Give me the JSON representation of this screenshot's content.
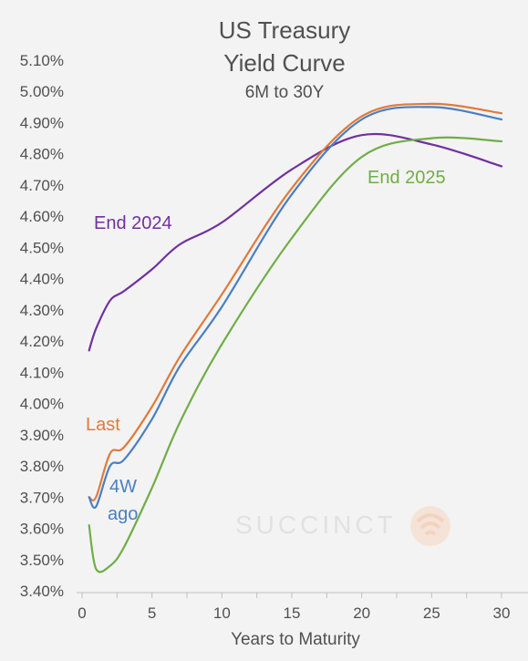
{
  "chart_data": {
    "type": "line",
    "title_lines": [
      "US Treasury",
      "Yield Curve"
    ],
    "subtitle": "6M to 30Y",
    "xlabel": "Years to Maturity",
    "ylabel": "",
    "xlim": [
      0,
      30
    ],
    "ylim": [
      3.4,
      5.15
    ],
    "x_ticks": [
      0,
      5,
      10,
      15,
      20,
      25,
      30
    ],
    "y_ticks": [
      3.4,
      3.5,
      3.6,
      3.7,
      3.8,
      3.9,
      4.0,
      4.1,
      4.2,
      4.3,
      4.4,
      4.5,
      4.6,
      4.7,
      4.8,
      4.9,
      5.0,
      5.1
    ],
    "y_tick_labels": [
      "3.40%",
      "3.50%",
      "3.60%",
      "3.70%",
      "3.80%",
      "3.90%",
      "4.00%",
      "4.10%",
      "4.20%",
      "4.30%",
      "4.40%",
      "4.50%",
      "4.60%",
      "4.70%",
      "4.80%",
      "4.90%",
      "5.00%",
      "5.10%"
    ],
    "grid": false,
    "series": [
      {
        "name": "End 2024",
        "color": "#7030a0",
        "x": [
          0.5,
          1,
          2,
          3,
          5,
          7,
          10,
          15,
          20,
          25,
          30
        ],
        "values": [
          4.17,
          4.24,
          4.33,
          4.36,
          4.43,
          4.51,
          4.58,
          4.75,
          4.86,
          4.83,
          4.76
        ]
      },
      {
        "name": "Last",
        "color": "#e07a3a",
        "x": [
          0.5,
          1,
          2,
          3,
          5,
          7,
          10,
          15,
          20,
          25,
          30
        ],
        "values": [
          3.7,
          3.7,
          3.84,
          3.86,
          3.99,
          4.15,
          4.35,
          4.69,
          4.92,
          4.96,
          4.93
        ]
      },
      {
        "name": "4W ago",
        "color": "#4a7fc1",
        "x": [
          0.5,
          1,
          2,
          3,
          5,
          7,
          10,
          15,
          20,
          25,
          30
        ],
        "values": [
          3.7,
          3.67,
          3.8,
          3.82,
          3.95,
          4.12,
          4.31,
          4.67,
          4.91,
          4.95,
          4.91
        ]
      },
      {
        "name": "End 2025",
        "color": "#70ad47",
        "x": [
          0.5,
          1,
          2,
          3,
          5,
          7,
          10,
          15,
          20,
          25,
          30
        ],
        "values": [
          3.61,
          3.47,
          3.48,
          3.54,
          3.73,
          3.94,
          4.19,
          4.53,
          4.79,
          4.85,
          4.84
        ]
      }
    ],
    "annotations": [
      {
        "series": "End 2024",
        "lines": [
          "End 2024"
        ],
        "color": "#7030a0"
      },
      {
        "series": "Last",
        "lines": [
          "Last"
        ],
        "color": "#e07a3a"
      },
      {
        "series": "4W ago",
        "lines": [
          "4W",
          "ago"
        ],
        "color": "#4a7fc1"
      },
      {
        "series": "End 2025",
        "lines": [
          "End 2025"
        ],
        "color": "#70ad47"
      }
    ],
    "watermark": "SUCCINCT"
  },
  "colors": {
    "background": "#f3f3f3",
    "text": "#505050",
    "axis": "#bfbfbf"
  }
}
